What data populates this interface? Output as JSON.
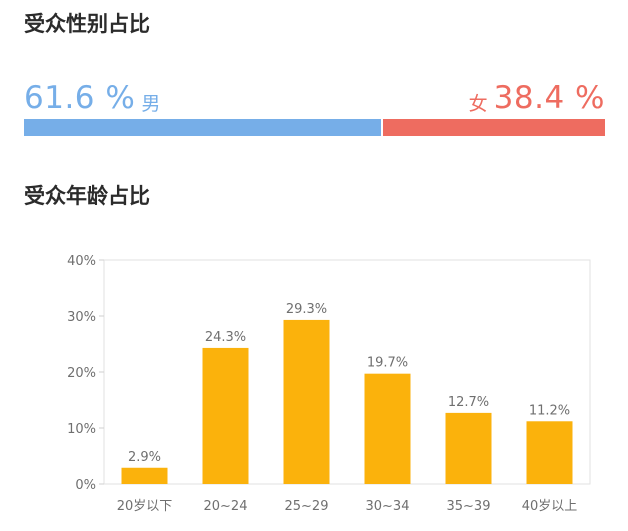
{
  "gender": {
    "title": "受众性别占比",
    "male_percent_text": "61.6 %",
    "male_label": "男",
    "female_percent_text": "38.4 %",
    "female_label": "女",
    "male_value": 61.6,
    "female_value": 38.4,
    "male_color": "#76aee8",
    "female_color": "#ee6c60"
  },
  "age": {
    "title": "受众年龄占比"
  },
  "chart_data": {
    "type": "bar",
    "categories": [
      "20岁以下",
      "20~24",
      "25~29",
      "30~34",
      "35~39",
      "40岁以上"
    ],
    "values": [
      2.9,
      24.3,
      29.3,
      19.7,
      12.7,
      11.2
    ],
    "value_labels": [
      "2.9%",
      "24.3%",
      "29.3%",
      "19.7%",
      "12.7%",
      "11.2%"
    ],
    "y_ticks": [
      0,
      10,
      20,
      30,
      40
    ],
    "y_tick_labels": [
      "0%",
      "10%",
      "20%",
      "30%",
      "40%"
    ],
    "ylim": [
      0,
      40
    ],
    "grid": false,
    "bar_color": "#fbb20c",
    "title": "",
    "xlabel": "",
    "ylabel": ""
  }
}
